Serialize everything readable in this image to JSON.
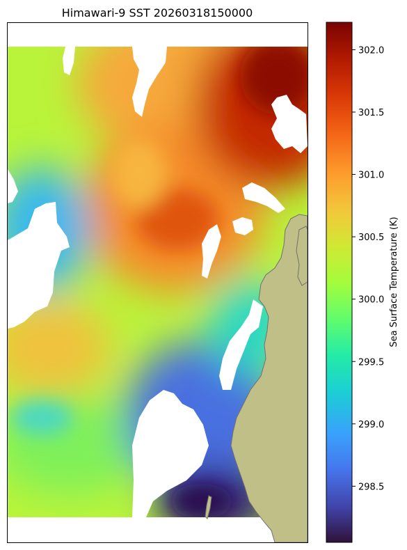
{
  "chart_data": {
    "type": "heatmap",
    "title": "Himawari-9 SST 20260318150000",
    "colorbar": {
      "label": "Sea Surface Temperature (K)",
      "range": [
        298.05,
        302.22
      ],
      "ticks": [
        "298.5",
        "299.0",
        "299.5",
        "300.0",
        "300.5",
        "301.0",
        "301.5",
        "302.0"
      ],
      "colormap": "turbo"
    },
    "colors": {
      "land": "#bfbf87",
      "coastline": "#707070",
      "missing": "#ffffff"
    },
    "field_samples": [
      {
        "region": "north-east",
        "sst_k": 302.1
      },
      {
        "region": "north-west",
        "sst_k": 300.0
      },
      {
        "region": "center",
        "sst_k": 301.2
      },
      {
        "region": "west",
        "sst_k": 299.4
      },
      {
        "region": "south-west",
        "sst_k": 299.8
      },
      {
        "region": "south-east near coast",
        "sst_k": 298.4
      },
      {
        "region": "south-east corner",
        "sst_k": 298.1
      }
    ]
  }
}
